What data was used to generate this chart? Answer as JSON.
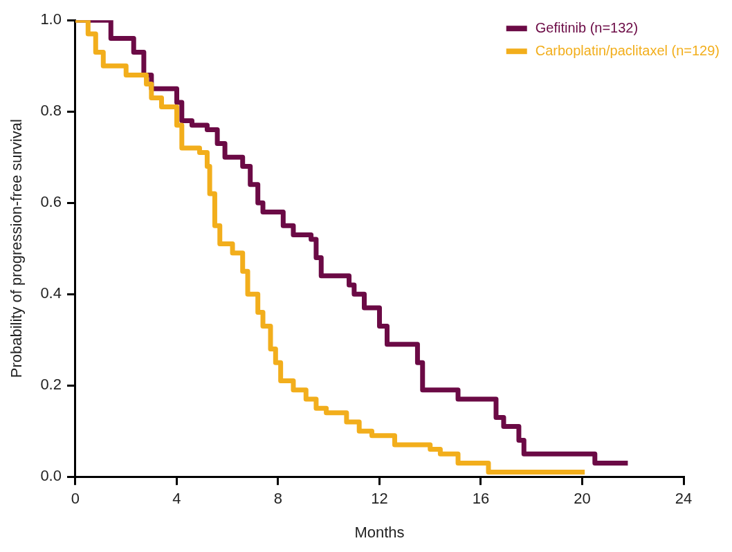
{
  "chart_data": {
    "type": "step",
    "xlabel": "Months",
    "ylabel": "Probability of progression-free survival",
    "xlim": [
      0,
      24
    ],
    "xticks": [
      0,
      4,
      8,
      12,
      16,
      20,
      24
    ],
    "ylim": [
      0,
      1
    ],
    "yticks": [
      {
        "value": 0,
        "label": "0.0"
      },
      {
        "value": 0.2,
        "label": "0.2"
      },
      {
        "value": 0.4,
        "label": "0.4"
      },
      {
        "value": 0.6,
        "label": "0.6"
      },
      {
        "value": 0.8,
        "label": "0.8"
      },
      {
        "value": 1,
        "label": "1.0"
      }
    ],
    "grid": false,
    "legend": "top right",
    "marker": "none",
    "line_style": "solid",
    "series": [
      {
        "name": "Gefitinib (n=132)",
        "color": "#6b0a45",
        "x": [
          0,
          1.4,
          2.3,
          2.7,
          3.0,
          4.0,
          4.2,
          4.6,
          5.2,
          5.6,
          5.9,
          6.6,
          6.9,
          7.2,
          7.4,
          8.2,
          8.6,
          9.3,
          9.5,
          9.7,
          10.8,
          11.0,
          11.4,
          12.0,
          12.3,
          13.5,
          13.7,
          15.1,
          16.6,
          16.9,
          17.5,
          17.7,
          20.5,
          21.8
        ],
        "values": [
          1.0,
          0.96,
          0.93,
          0.88,
          0.85,
          0.82,
          0.78,
          0.77,
          0.76,
          0.73,
          0.7,
          0.68,
          0.64,
          0.6,
          0.58,
          0.55,
          0.53,
          0.52,
          0.48,
          0.44,
          0.42,
          0.4,
          0.37,
          0.33,
          0.29,
          0.25,
          0.19,
          0.17,
          0.13,
          0.11,
          0.08,
          0.05,
          0.03,
          0.03
        ]
      },
      {
        "name": "Carboplatin/paclitaxel (n=129)",
        "color": "#f2ae1c",
        "x": [
          0,
          0.5,
          0.8,
          1.1,
          2.0,
          2.8,
          3.0,
          3.4,
          4.0,
          4.2,
          4.9,
          5.2,
          5.3,
          5.5,
          5.7,
          6.2,
          6.6,
          6.8,
          7.2,
          7.4,
          7.7,
          7.9,
          8.1,
          8.6,
          9.1,
          9.5,
          9.9,
          10.7,
          11.2,
          11.7,
          12.6,
          14.0,
          14.4,
          15.1,
          16.3,
          20.1
        ],
        "values": [
          1.0,
          0.97,
          0.93,
          0.9,
          0.88,
          0.86,
          0.83,
          0.81,
          0.77,
          0.72,
          0.71,
          0.68,
          0.62,
          0.55,
          0.51,
          0.49,
          0.45,
          0.4,
          0.36,
          0.33,
          0.28,
          0.25,
          0.21,
          0.19,
          0.17,
          0.15,
          0.14,
          0.12,
          0.1,
          0.09,
          0.07,
          0.06,
          0.05,
          0.03,
          0.01,
          0.01
        ]
      }
    ]
  }
}
